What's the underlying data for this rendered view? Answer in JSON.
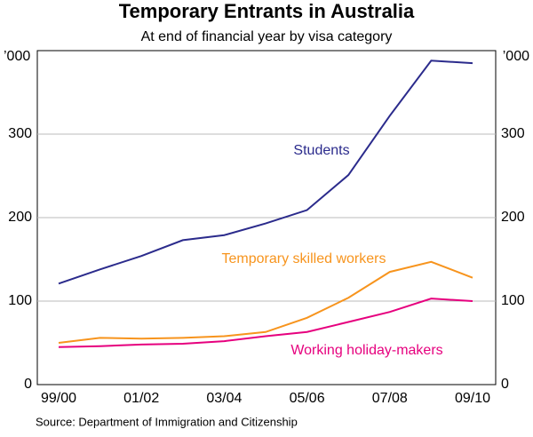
{
  "chart_data": {
    "type": "line",
    "title": "Temporary Entrants in Australia",
    "subtitle": "At end of financial year by visa category",
    "y_unit": "’000",
    "source": "Source: Department of Immigration and Citizenship",
    "categories": [
      "99/00",
      null,
      "01/02",
      null,
      "03/04",
      null,
      "05/06",
      null,
      "07/08",
      null,
      "09/10"
    ],
    "series": [
      {
        "name": "Students",
        "color": "#2b2b8c",
        "values": [
          121,
          138,
          154,
          173,
          179,
          193,
          209,
          251,
          322,
          388,
          385
        ]
      },
      {
        "name": "Temporary skilled workers",
        "color": "#f7941d",
        "values": [
          50,
          56,
          55,
          56,
          58,
          63,
          80,
          104,
          135,
          147,
          128
        ]
      },
      {
        "name": "Working holiday-makers",
        "color": "#e6007e",
        "values": [
          45,
          46,
          48,
          49,
          52,
          58,
          63,
          75,
          87,
          103,
          100
        ]
      }
    ],
    "ylim": [
      0,
      400
    ],
    "yticks": [
      0,
      100,
      200,
      300
    ],
    "grid": true
  }
}
